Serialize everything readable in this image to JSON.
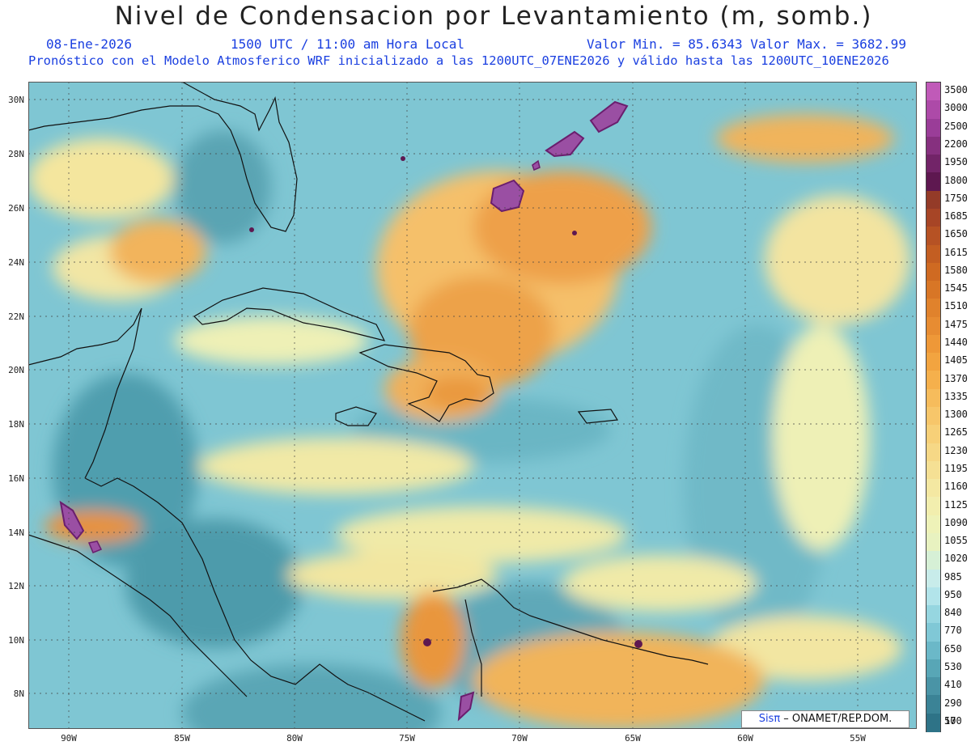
{
  "title": "Nivel de Condensacion por Levantamiento (m, somb.)",
  "date": "08-Ene-2026",
  "time": "1500 UTC / 11:00 am Hora Local",
  "minmax": "Valor Min. = 85.6343  Valor Max. = 3682.99",
  "forecast": "Pronóstico con el Modelo Atmosferico WRF inicializado a las 1200UTC_07ENE2026 y válido hasta las  1200UTC_10ENE2026",
  "lat_labels": [
    "30N",
    "28N",
    "26N",
    "24N",
    "22N",
    "20N",
    "18N",
    "16N",
    "14N",
    "12N",
    "10N",
    "8N"
  ],
  "lon_labels": [
    "90W",
    "85W",
    "80W",
    "75W",
    "70W",
    "65W",
    "60W",
    "55W"
  ],
  "colorbar": {
    "levels": [
      "3500",
      "3000",
      "2500",
      "2200",
      "1950",
      "1800",
      "1750",
      "1685",
      "1650",
      "1615",
      "1580",
      "1545",
      "1510",
      "1475",
      "1440",
      "1405",
      "1370",
      "1335",
      "1300",
      "1265",
      "1230",
      "1195",
      "1160",
      "1125",
      "1090",
      "1055",
      "1020",
      "985",
      "950",
      "840",
      "770",
      "650",
      "530",
      "410",
      "290",
      "170",
      "50"
    ],
    "colors": [
      "#c05ab8",
      "#ad4aa8",
      "#9a3d98",
      "#86307f",
      "#722468",
      "#5e1850",
      "#943b28",
      "#a74526",
      "#b65224",
      "#c35e22",
      "#cf6a22",
      "#d87626",
      "#e0822c",
      "#e78c32",
      "#ee9838",
      "#f2a440",
      "#f5b04c",
      "#f6bc5c",
      "#f7c66a",
      "#f7d078",
      "#f6d886",
      "#f5e094",
      "#f4e8a2",
      "#f2eeae",
      "#eef2b8",
      "#e8f2c0",
      "#d6f0d6",
      "#c8ecea",
      "#b2e4ea",
      "#96d6e0",
      "#80c8d6",
      "#6bb8c8",
      "#58a6b6",
      "#4a94a6",
      "#3b8396",
      "#2e7387"
    ]
  },
  "credit_sis": "Sisπ",
  "credit_rest": " – ONAMET/REP.DOM."
}
